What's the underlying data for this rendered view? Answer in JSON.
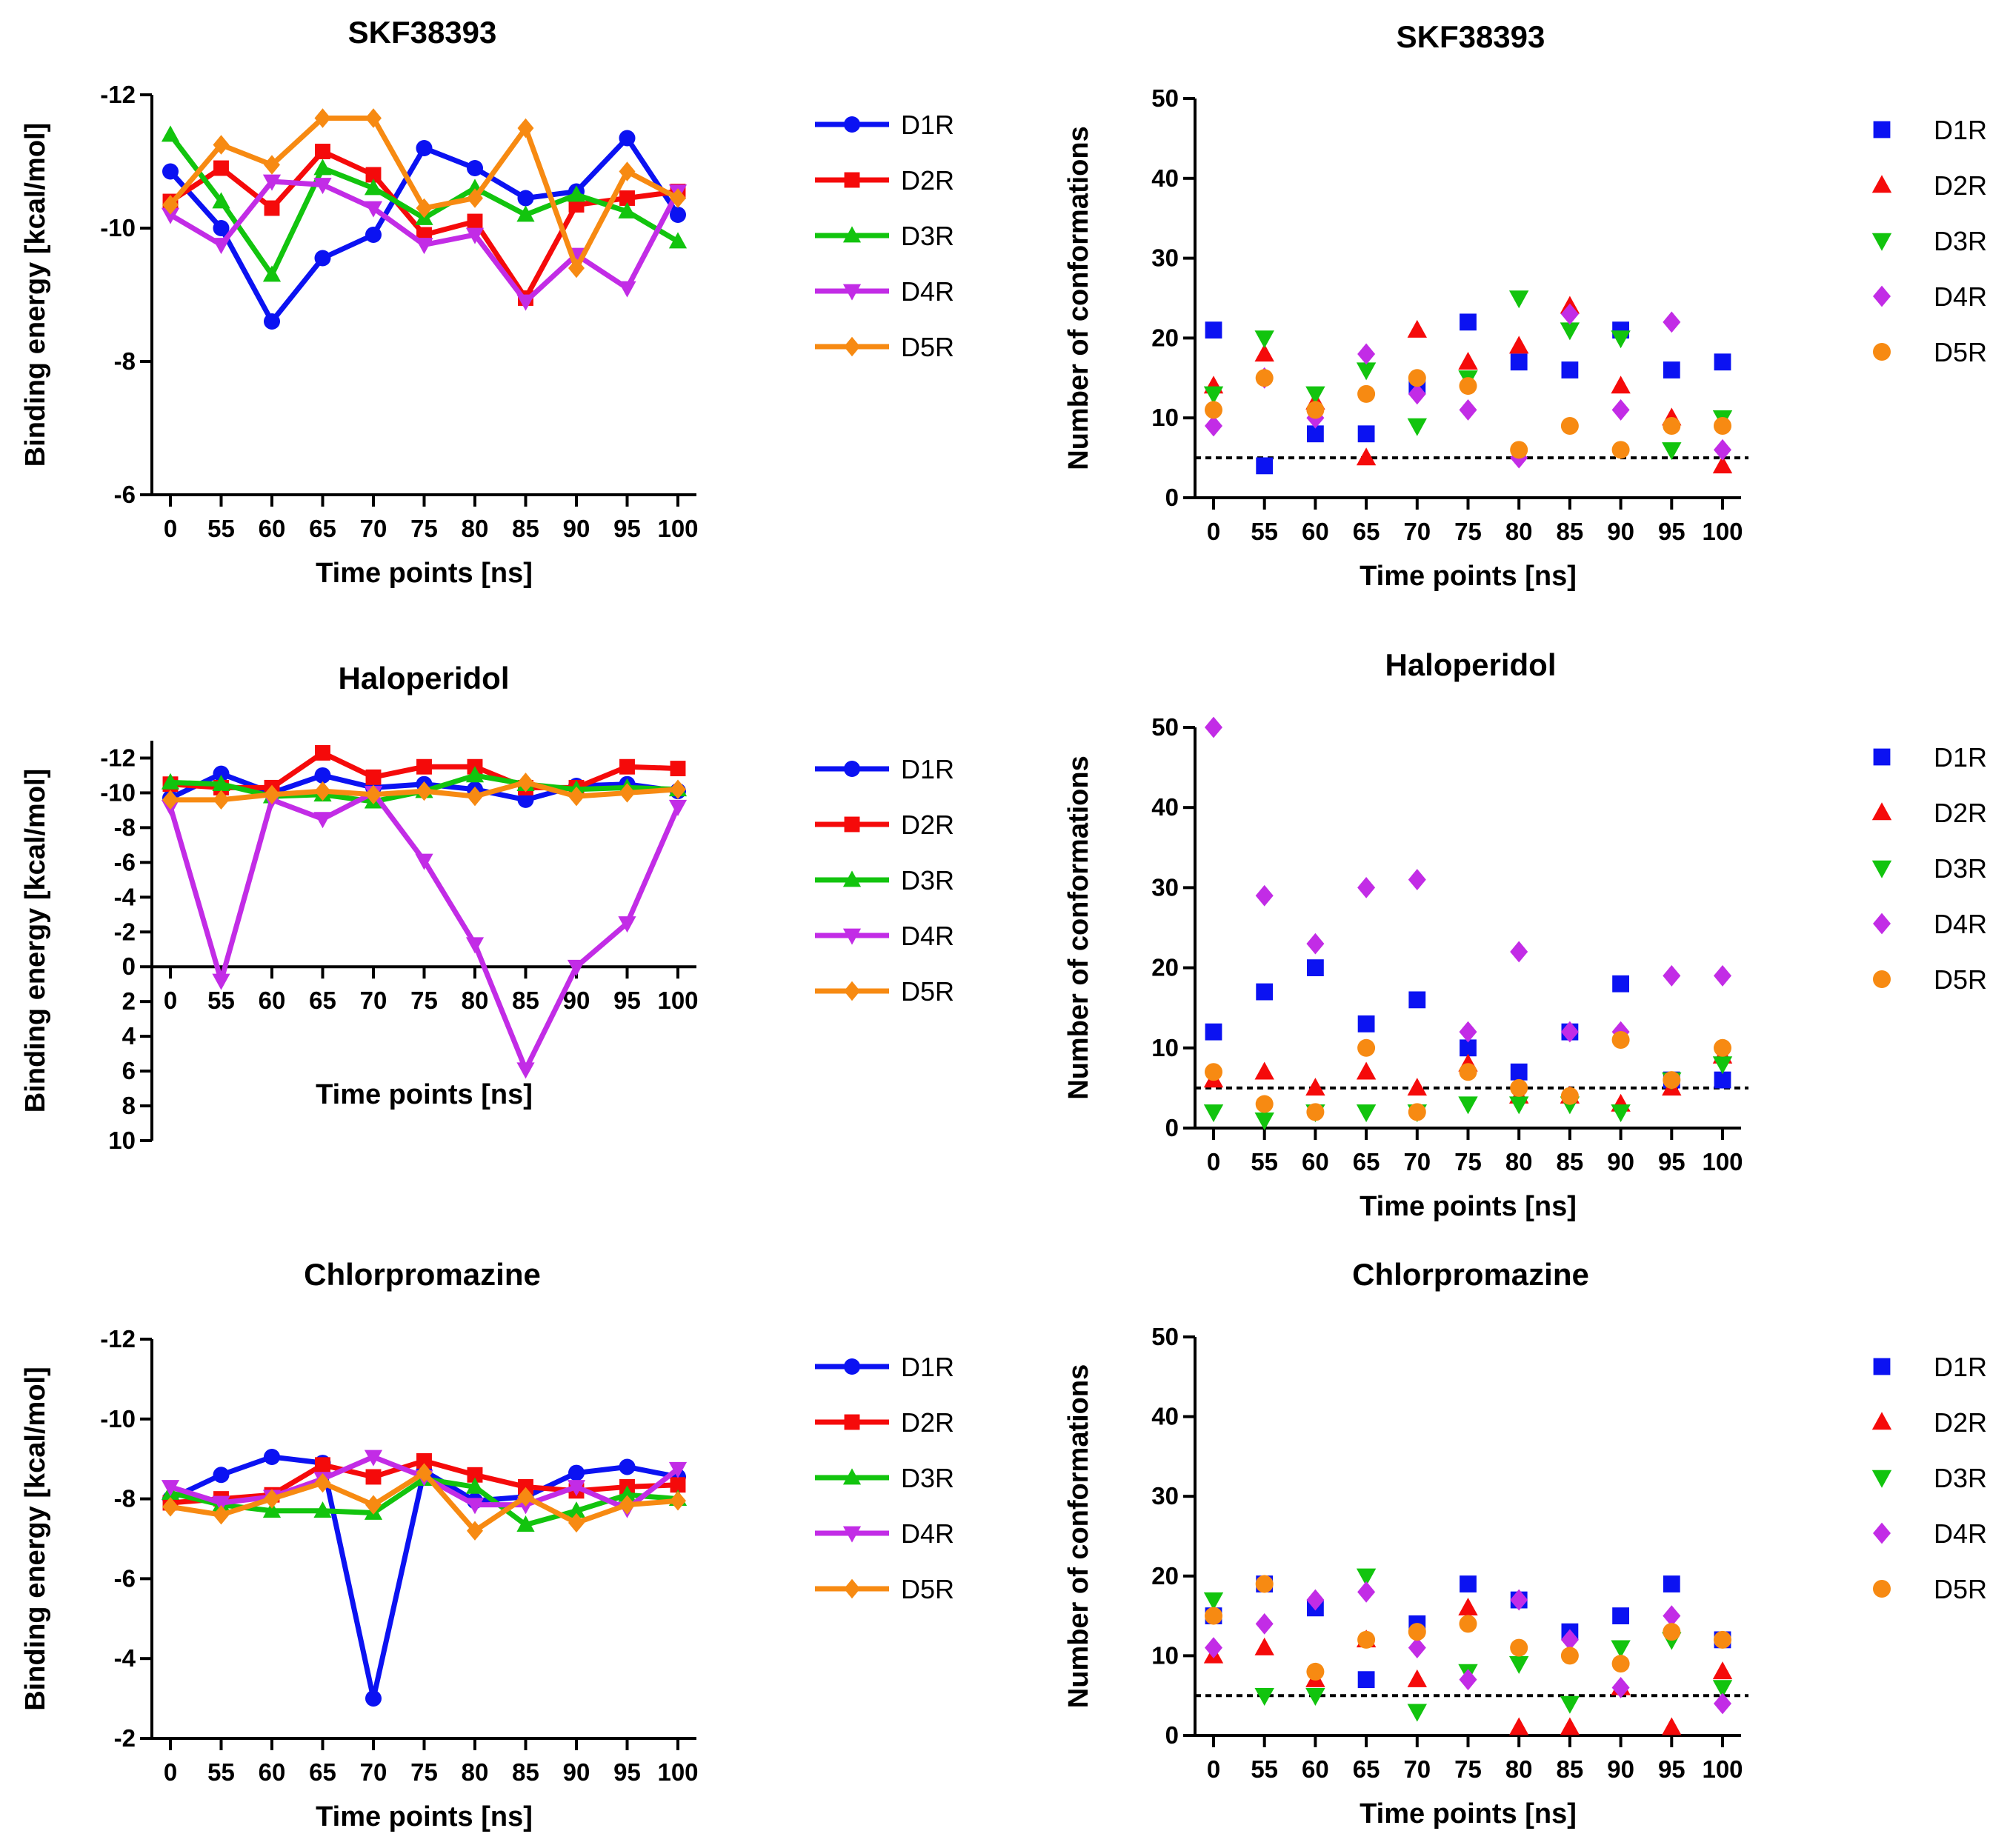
{
  "series_names": [
    "D1R",
    "D2R",
    "D3R",
    "D4R",
    "D5R"
  ],
  "colors": {
    "D1R": "#0b12f2",
    "D2R": "#f50a0a",
    "D3R": "#12c40e",
    "D4R": "#c22ce6",
    "D5R": "#f78a12"
  },
  "chart_data": [
    {
      "id": "skf-energy",
      "type": "line",
      "title": "SKF38393",
      "xlabel": "Time points [ns]",
      "ylabel": "Binding energy [kcal/mol]",
      "categories": [
        "0",
        "55",
        "60",
        "65",
        "70",
        "75",
        "80",
        "85",
        "90",
        "95",
        "100"
      ],
      "ylim": [
        -6,
        -12
      ],
      "yticks": [
        -6,
        -8,
        -10,
        -12
      ],
      "ytick_labels": [
        "-6",
        "-8",
        "-10",
        "-12"
      ],
      "series": [
        {
          "name": "D1R",
          "marker": "circle",
          "values": [
            -10.85,
            -10.0,
            -8.6,
            -9.55,
            -9.9,
            -11.2,
            -10.9,
            -10.45,
            -10.55,
            -11.35,
            -10.2
          ]
        },
        {
          "name": "D2R",
          "marker": "square",
          "values": [
            -10.4,
            -10.9,
            -10.3,
            -11.15,
            -10.8,
            -9.9,
            -10.1,
            -8.95,
            -10.35,
            -10.45,
            -10.55
          ]
        },
        {
          "name": "D3R",
          "marker": "triangle-up",
          "values": [
            -11.4,
            -10.4,
            -9.3,
            -10.9,
            -10.6,
            -10.15,
            -10.6,
            -10.2,
            -10.5,
            -10.25,
            -9.8
          ]
        },
        {
          "name": "D4R",
          "marker": "triangle-down",
          "values": [
            -10.2,
            -9.75,
            -10.7,
            -10.65,
            -10.3,
            -9.75,
            -9.9,
            -8.9,
            -9.6,
            -9.1,
            -10.55
          ]
        },
        {
          "name": "D5R",
          "marker": "diamond",
          "values": [
            -10.35,
            -11.25,
            -10.95,
            -11.65,
            -11.65,
            -10.3,
            -10.45,
            -11.5,
            -9.4,
            -10.85,
            -10.45
          ]
        }
      ]
    },
    {
      "id": "skf-conf",
      "type": "scatter",
      "title": "SKF38393",
      "xlabel": "Time points [ns]",
      "ylabel": "Number of conformations",
      "categories": [
        "0",
        "55",
        "60",
        "65",
        "70",
        "75",
        "80",
        "85",
        "90",
        "95",
        "100"
      ],
      "ylim": [
        0,
        50
      ],
      "yticks": [
        0,
        10,
        20,
        30,
        40,
        50
      ],
      "ytick_labels": [
        "0",
        "10",
        "20",
        "30",
        "40",
        "50"
      ],
      "threshold": 5,
      "series": [
        {
          "name": "D1R",
          "marker": "square",
          "values": [
            21,
            4,
            8,
            8,
            14,
            22,
            17,
            16,
            21,
            16,
            17
          ]
        },
        {
          "name": "D2R",
          "marker": "triangle-up",
          "values": [
            14,
            18,
            12,
            5,
            21,
            17,
            19,
            24,
            14,
            10,
            4
          ]
        },
        {
          "name": "D3R",
          "marker": "triangle-down",
          "values": [
            13,
            20,
            13,
            16,
            9,
            15,
            25,
            21,
            20,
            6,
            10
          ]
        },
        {
          "name": "D4R",
          "marker": "diamond",
          "values": [
            9,
            15,
            10,
            18,
            13,
            11,
            5,
            23,
            11,
            22,
            6
          ]
        },
        {
          "name": "D5R",
          "marker": "circle",
          "values": [
            11,
            15,
            11,
            13,
            15,
            14,
            6,
            9,
            6,
            9,
            9
          ]
        }
      ]
    },
    {
      "id": "hal-energy",
      "type": "line",
      "title": "Haloperidol",
      "xlabel": "Time points [ns]",
      "ylabel": "Binding energy [kcal/mol]",
      "categories": [
        "0",
        "55",
        "60",
        "65",
        "70",
        "75",
        "80",
        "85",
        "90",
        "95",
        "100"
      ],
      "ylim": [
        10,
        -13
      ],
      "xaxis_at": 0,
      "yticks": [
        10,
        8,
        6,
        4,
        2,
        0,
        -2,
        -4,
        -6,
        -8,
        -10,
        -12
      ],
      "ytick_labels": [
        "10",
        "8",
        "6",
        "4",
        "2",
        "0",
        "-2",
        "-4",
        "-6",
        "-8",
        "-10",
        "-12"
      ],
      "series": [
        {
          "name": "D1R",
          "marker": "circle",
          "values": [
            -9.7,
            -11.1,
            -10.0,
            -11.0,
            -10.3,
            -10.5,
            -10.2,
            -9.6,
            -10.4,
            -10.5,
            -10.1
          ]
        },
        {
          "name": "D2R",
          "marker": "square",
          "values": [
            -10.5,
            -10.3,
            -10.3,
            -12.3,
            -10.9,
            -11.5,
            -11.5,
            -10.3,
            -10.3,
            -11.5,
            -11.4
          ]
        },
        {
          "name": "D3R",
          "marker": "triangle-up",
          "values": [
            -10.6,
            -10.5,
            -9.8,
            -9.9,
            -9.5,
            -10.1,
            -11.0,
            -10.5,
            -10.2,
            -10.3,
            -10.2
          ]
        },
        {
          "name": "D4R",
          "marker": "triangle-down",
          "values": [
            -9.2,
            0.8,
            -9.6,
            -8.5,
            -10.0,
            -6.1,
            -1.3,
            5.9,
            0.0,
            -2.5,
            -9.2
          ]
        },
        {
          "name": "D5R",
          "marker": "diamond",
          "values": [
            -9.6,
            -9.6,
            -9.9,
            -10.1,
            -9.9,
            -10.1,
            -9.8,
            -10.6,
            -9.8,
            -10.0,
            -10.2
          ]
        }
      ]
    },
    {
      "id": "hal-conf",
      "type": "scatter",
      "title": "Haloperidol",
      "xlabel": "Time points [ns]",
      "ylabel": "Number of conformations",
      "categories": [
        "0",
        "55",
        "60",
        "65",
        "70",
        "75",
        "80",
        "85",
        "90",
        "95",
        "100"
      ],
      "ylim": [
        0,
        50
      ],
      "yticks": [
        0,
        10,
        20,
        30,
        40,
        50
      ],
      "ytick_labels": [
        "0",
        "10",
        "20",
        "30",
        "40",
        "50"
      ],
      "threshold": 5,
      "series": [
        {
          "name": "D1R",
          "marker": "square",
          "values": [
            12,
            17,
            20,
            13,
            16,
            10,
            7,
            12,
            18,
            6,
            6
          ]
        },
        {
          "name": "D2R",
          "marker": "triangle-up",
          "values": [
            6,
            7,
            5,
            7,
            5,
            8,
            4,
            4,
            3,
            5,
            9
          ]
        },
        {
          "name": "D3R",
          "marker": "triangle-down",
          "values": [
            2,
            1,
            2,
            2,
            2,
            3,
            3,
            3,
            2,
            6,
            8
          ]
        },
        {
          "name": "D4R",
          "marker": "diamond",
          "values": [
            50,
            29,
            23,
            30,
            31,
            12,
            22,
            12,
            12,
            19,
            19
          ]
        },
        {
          "name": "D5R",
          "marker": "circle",
          "values": [
            7,
            3,
            2,
            10,
            2,
            7,
            5,
            4,
            11,
            6,
            10
          ]
        }
      ]
    },
    {
      "id": "chl-energy",
      "type": "line",
      "title": "Chlorpromazine",
      "xlabel": "Time points [ns]",
      "ylabel": "Binding energy [kcal/mol]",
      "categories": [
        "0",
        "55",
        "60",
        "65",
        "70",
        "75",
        "80",
        "85",
        "90",
        "95",
        "100"
      ],
      "ylim": [
        -2,
        -12
      ],
      "yticks": [
        -2,
        -4,
        -6,
        -8,
        -10,
        -12
      ],
      "ytick_labels": [
        "-2",
        "-4",
        "-6",
        "-8",
        "-10",
        "-12"
      ],
      "series": [
        {
          "name": "D1R",
          "marker": "circle",
          "values": [
            -8.0,
            -8.6,
            -9.05,
            -8.9,
            -3.0,
            -8.7,
            -7.95,
            -8.05,
            -8.65,
            -8.8,
            -8.55
          ]
        },
        {
          "name": "D2R",
          "marker": "square",
          "values": [
            -7.9,
            -8.0,
            -8.1,
            -8.85,
            -8.55,
            -8.95,
            -8.6,
            -8.3,
            -8.2,
            -8.3,
            -8.35
          ]
        },
        {
          "name": "D3R",
          "marker": "triangle-up",
          "values": [
            -8.15,
            -7.85,
            -7.7,
            -7.7,
            -7.65,
            -8.5,
            -8.3,
            -7.35,
            -7.7,
            -8.1,
            -8.0
          ]
        },
        {
          "name": "D4R",
          "marker": "triangle-down",
          "values": [
            -8.3,
            -7.9,
            -8.05,
            -8.5,
            -9.05,
            -8.55,
            -7.85,
            -7.85,
            -8.3,
            -7.75,
            -8.75
          ]
        },
        {
          "name": "D5R",
          "marker": "diamond",
          "values": [
            -7.8,
            -7.6,
            -8.0,
            -8.4,
            -7.85,
            -8.65,
            -7.2,
            -8.05,
            -7.4,
            -7.85,
            -7.95
          ]
        }
      ]
    },
    {
      "id": "chl-conf",
      "type": "scatter",
      "title": "Chlorpromazine",
      "xlabel": "Time points [ns]",
      "ylabel": "Number of conformations",
      "categories": [
        "0",
        "55",
        "60",
        "65",
        "70",
        "75",
        "80",
        "85",
        "90",
        "95",
        "100"
      ],
      "ylim": [
        0,
        50
      ],
      "yticks": [
        0,
        10,
        20,
        30,
        40,
        50
      ],
      "ytick_labels": [
        "0",
        "10",
        "20",
        "30",
        "40",
        "50"
      ],
      "threshold": 5,
      "series": [
        {
          "name": "D1R",
          "marker": "square",
          "values": [
            15,
            19,
            16,
            7,
            14,
            19,
            17,
            13,
            15,
            19,
            12
          ]
        },
        {
          "name": "D2R",
          "marker": "triangle-up",
          "values": [
            10,
            11,
            7,
            12,
            7,
            16,
            1,
            1,
            6,
            1,
            8
          ]
        },
        {
          "name": "D3R",
          "marker": "triangle-down",
          "values": [
            17,
            5,
            5,
            20,
            3,
            8,
            9,
            4,
            11,
            12,
            6
          ]
        },
        {
          "name": "D4R",
          "marker": "diamond",
          "values": [
            11,
            14,
            17,
            18,
            11,
            7,
            17,
            12,
            6,
            15,
            4
          ]
        },
        {
          "name": "D5R",
          "marker": "circle",
          "values": [
            15,
            19,
            8,
            12,
            13,
            14,
            11,
            10,
            9,
            13,
            12
          ]
        }
      ]
    }
  ]
}
